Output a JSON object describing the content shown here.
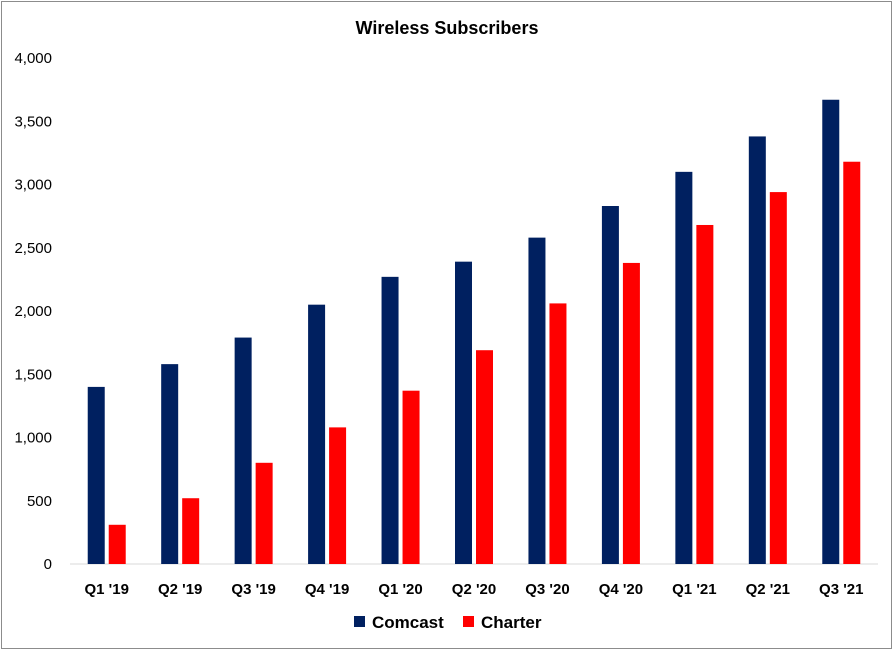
{
  "chart_data": {
    "type": "bar",
    "title": "Wireless Subscribers",
    "xlabel": "",
    "ylabel": "",
    "ylim": [
      0,
      4000
    ],
    "yticks": [
      0,
      500,
      1000,
      1500,
      2000,
      2500,
      3000,
      3500,
      4000
    ],
    "ytick_labels": [
      "0",
      "500",
      "1,000",
      "1,500",
      "2,000",
      "2,500",
      "3,000",
      "3,500",
      "4,000"
    ],
    "categories": [
      "Q1 '19",
      "Q2 '19",
      "Q3 '19",
      "Q4 '19",
      "Q1 '20",
      "Q2 '20",
      "Q3 '20",
      "Q4 '20",
      "Q1 '21",
      "Q2 '21",
      "Q3 '21"
    ],
    "series": [
      {
        "name": "Comcast",
        "color": "#002060",
        "values": [
          1400,
          1580,
          1790,
          2050,
          2270,
          2390,
          2580,
          2830,
          3100,
          3380,
          3670
        ]
      },
      {
        "name": "Charter",
        "color": "#ff0000",
        "values": [
          310,
          520,
          800,
          1080,
          1370,
          1690,
          2060,
          2380,
          2680,
          2940,
          3180
        ]
      }
    ],
    "grid": false,
    "legend_position": "bottom"
  }
}
